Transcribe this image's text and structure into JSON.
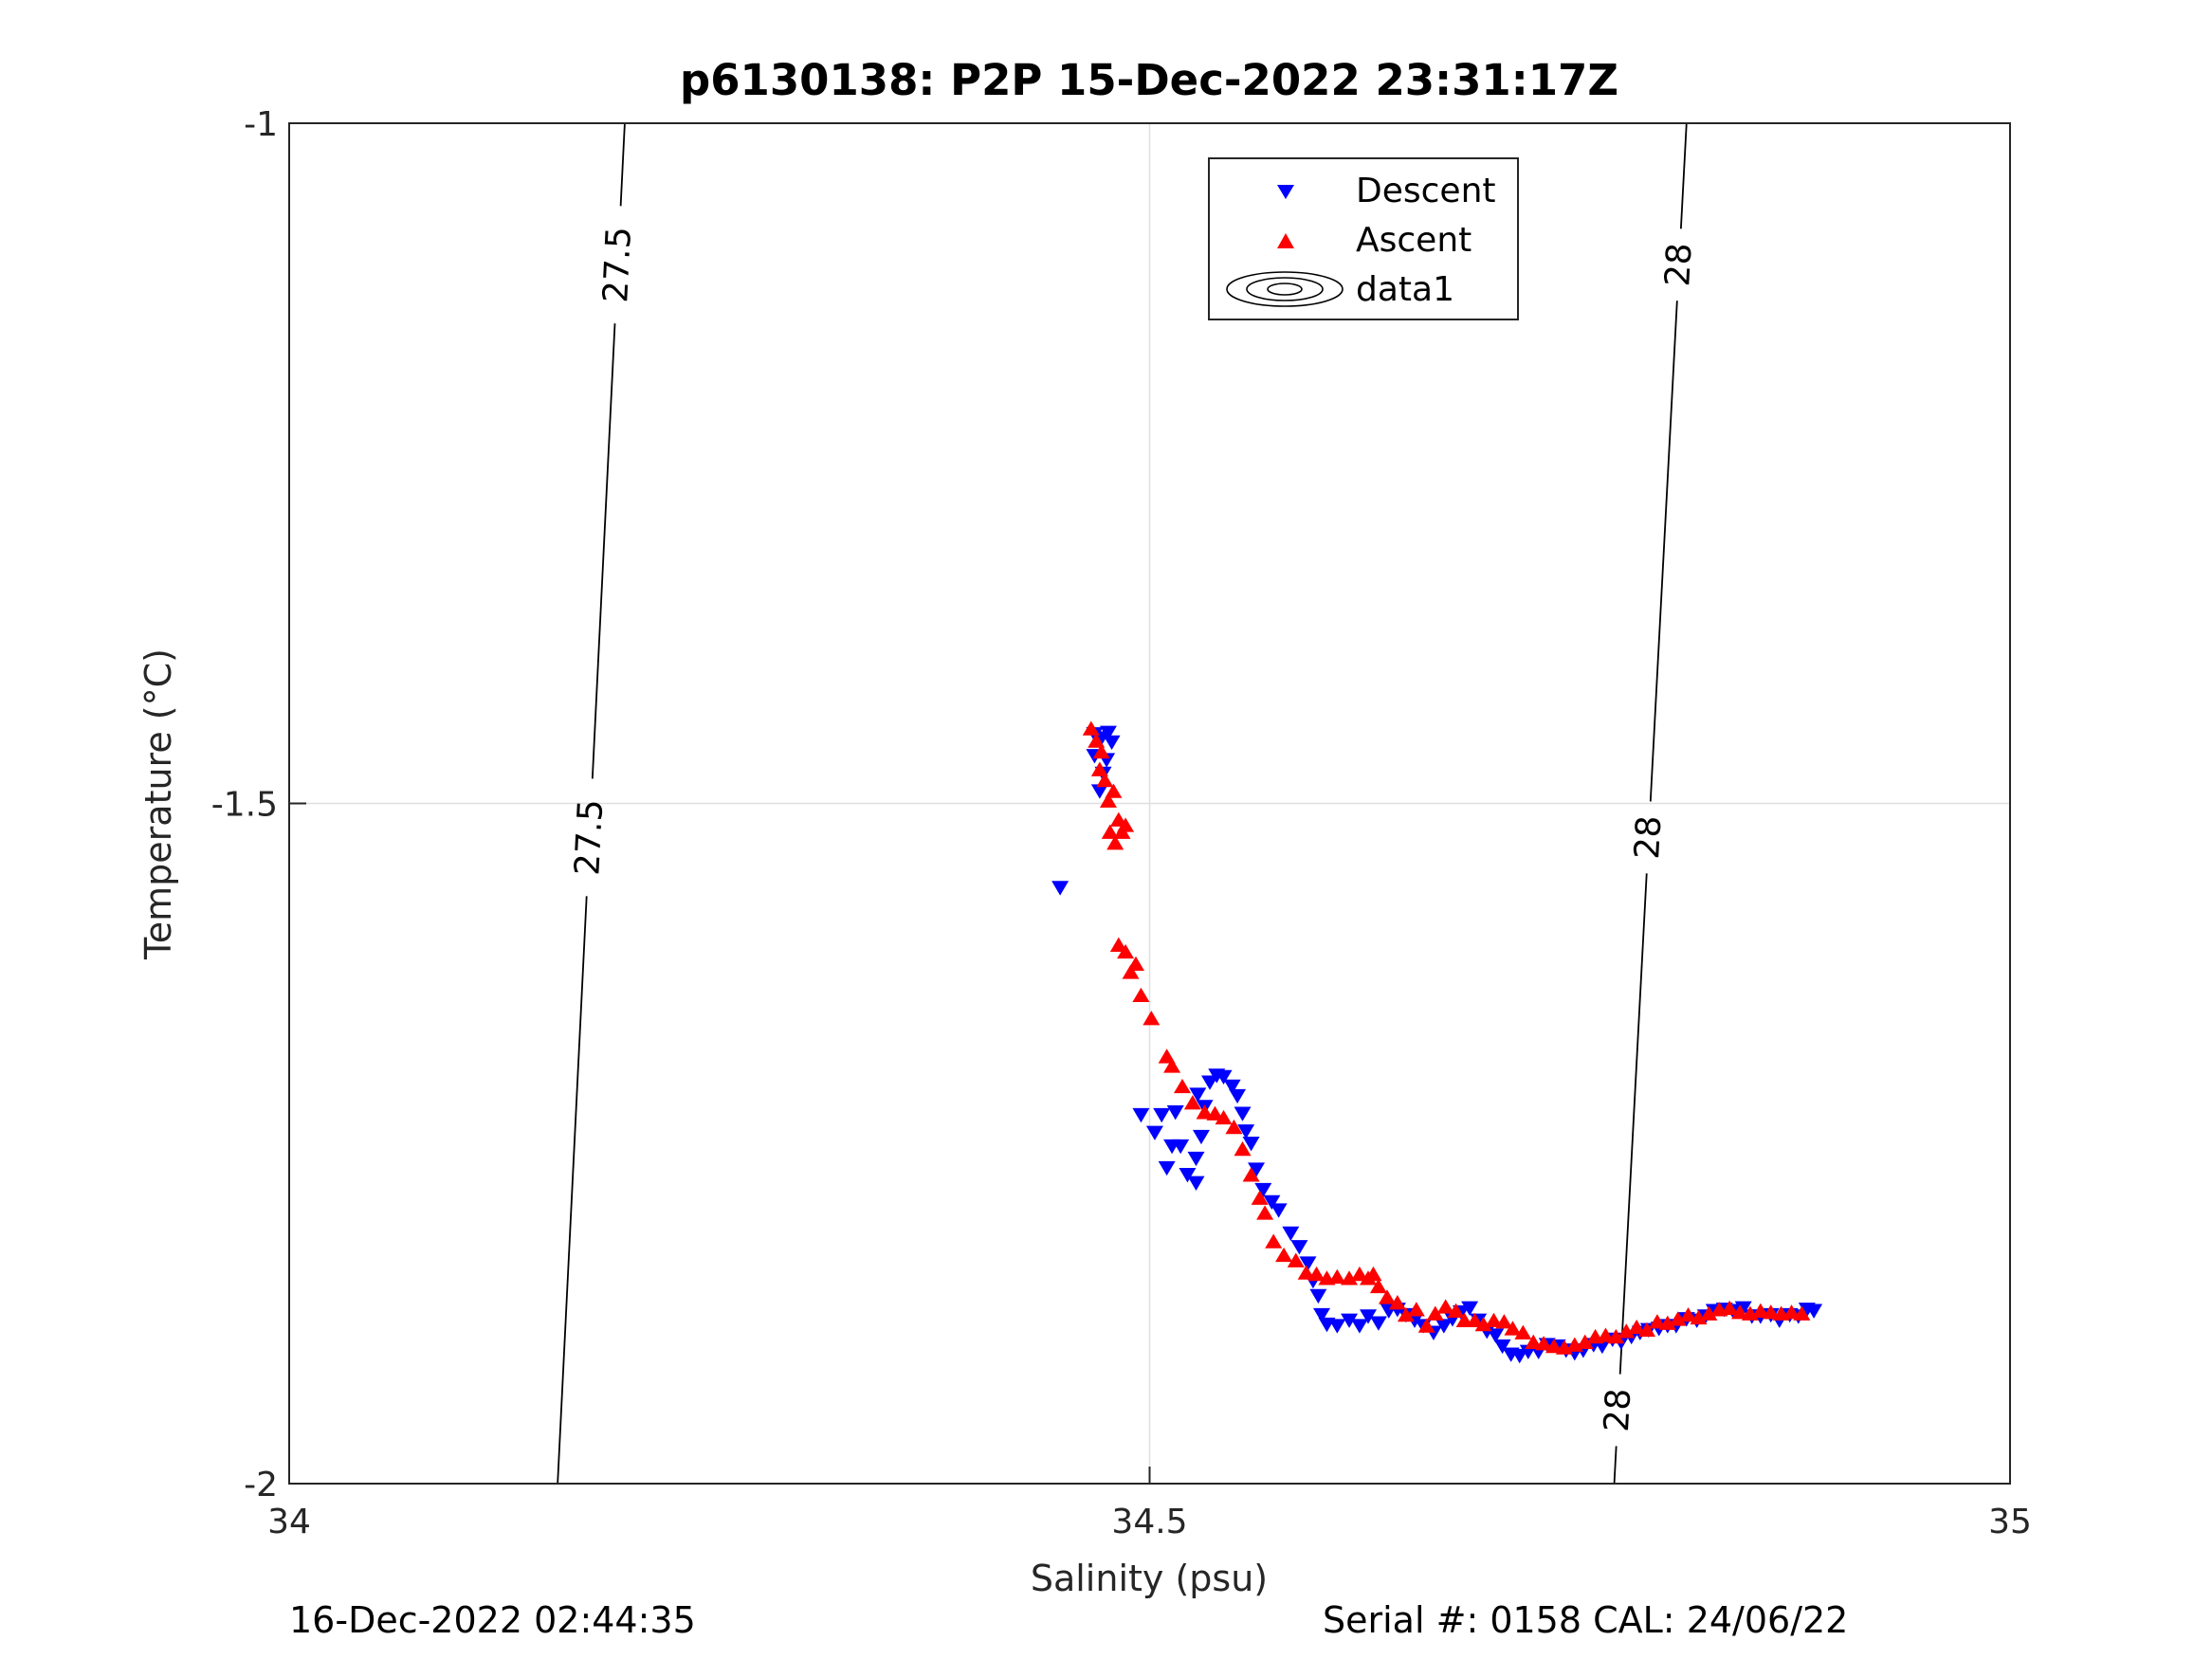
{
  "chart_data": {
    "type": "scatter",
    "title": "p6130138: P2P 15-Dec-2022 23:31:17Z",
    "xlabel": "Salinity (psu)",
    "ylabel": "Temperature (°C)",
    "xlim": [
      34,
      35
    ],
    "ylim": [
      -2,
      -1
    ],
    "xticks": [
      34,
      34.5,
      35
    ],
    "xtick_labels": [
      "34",
      "34.5",
      "35"
    ],
    "yticks": [
      -2,
      -1.5,
      -1
    ],
    "ytick_labels": [
      "-2",
      "-1.5",
      "-1"
    ],
    "grid": true,
    "legend_position": "top-center",
    "legend": [
      "Descent",
      "Ascent",
      "data1"
    ],
    "series": [
      {
        "name": "Descent",
        "color": "#0000ff",
        "marker": "triangle-down",
        "points": [
          [
            34.448,
            -1.562
          ],
          [
            34.468,
            -1.449
          ],
          [
            34.472,
            -1.452
          ],
          [
            34.476,
            -1.448
          ],
          [
            34.478,
            -1.455
          ],
          [
            34.475,
            -1.468
          ],
          [
            34.473,
            -1.478
          ],
          [
            34.471,
            -1.491
          ],
          [
            34.468,
            -1.465
          ],
          [
            34.495,
            -1.729
          ],
          [
            34.507,
            -1.729
          ],
          [
            34.503,
            -1.742
          ],
          [
            34.515,
            -1.727
          ],
          [
            34.513,
            -1.752
          ],
          [
            34.51,
            -1.768
          ],
          [
            34.518,
            -1.752
          ],
          [
            34.527,
            -1.761
          ],
          [
            34.522,
            -1.773
          ],
          [
            34.527,
            -1.779
          ],
          [
            34.53,
            -1.745
          ],
          [
            34.528,
            -1.714
          ],
          [
            34.532,
            -1.723
          ],
          [
            34.535,
            -1.705
          ],
          [
            34.539,
            -1.7
          ],
          [
            34.543,
            -1.701
          ],
          [
            34.548,
            -1.708
          ],
          [
            34.551,
            -1.715
          ],
          [
            34.554,
            -1.728
          ],
          [
            34.556,
            -1.741
          ],
          [
            34.559,
            -1.75
          ],
          [
            34.562,
            -1.769
          ],
          [
            34.566,
            -1.784
          ],
          [
            34.571,
            -1.793
          ],
          [
            34.575,
            -1.799
          ],
          [
            34.582,
            -1.816
          ],
          [
            34.587,
            -1.826
          ],
          [
            34.592,
            -1.838
          ],
          [
            34.595,
            -1.851
          ],
          [
            34.598,
            -1.862
          ],
          [
            34.6,
            -1.876
          ],
          [
            34.603,
            -1.883
          ],
          [
            34.609,
            -1.884
          ],
          [
            34.616,
            -1.88
          ],
          [
            34.622,
            -1.884
          ],
          [
            34.627,
            -1.877
          ],
          [
            34.633,
            -1.882
          ],
          [
            34.639,
            -1.873
          ],
          [
            34.644,
            -1.872
          ],
          [
            34.649,
            -1.876
          ],
          [
            34.654,
            -1.88
          ],
          [
            34.659,
            -1.884
          ],
          [
            34.665,
            -1.889
          ],
          [
            34.671,
            -1.884
          ],
          [
            34.676,
            -1.879
          ],
          [
            34.681,
            -1.874
          ],
          [
            34.686,
            -1.871
          ],
          [
            34.691,
            -1.88
          ],
          [
            34.696,
            -1.888
          ],
          [
            34.701,
            -1.891
          ],
          [
            34.705,
            -1.899
          ],
          [
            34.71,
            -1.905
          ],
          [
            34.715,
            -1.906
          ],
          [
            34.72,
            -1.903
          ],
          [
            34.726,
            -1.903
          ],
          [
            34.731,
            -1.898
          ],
          [
            34.737,
            -1.899
          ],
          [
            34.742,
            -1.902
          ],
          [
            34.747,
            -1.904
          ],
          [
            34.752,
            -1.902
          ],
          [
            34.758,
            -1.898
          ],
          [
            34.763,
            -1.899
          ],
          [
            34.769,
            -1.894
          ],
          [
            34.774,
            -1.896
          ],
          [
            34.78,
            -1.892
          ],
          [
            34.785,
            -1.889
          ],
          [
            34.79,
            -1.887
          ],
          [
            34.796,
            -1.886
          ],
          [
            34.801,
            -1.884
          ],
          [
            34.806,
            -1.884
          ],
          [
            34.812,
            -1.879
          ],
          [
            34.818,
            -1.88
          ],
          [
            34.823,
            -1.877
          ],
          [
            34.828,
            -1.873
          ],
          [
            34.834,
            -1.872
          ],
          [
            34.839,
            -1.873
          ],
          [
            34.845,
            -1.871
          ],
          [
            34.85,
            -1.877
          ],
          [
            34.855,
            -1.877
          ],
          [
            34.861,
            -1.876
          ],
          [
            34.866,
            -1.88
          ],
          [
            34.872,
            -1.876
          ],
          [
            34.877,
            -1.877
          ],
          [
            34.882,
            -1.872
          ],
          [
            34.886,
            -1.873
          ]
        ]
      },
      {
        "name": "Ascent",
        "color": "#ff0000",
        "marker": "triangle-up",
        "points": [
          [
            34.466,
            -1.445
          ],
          [
            34.469,
            -1.454
          ],
          [
            34.472,
            -1.462
          ],
          [
            34.471,
            -1.475
          ],
          [
            34.474,
            -1.483
          ],
          [
            34.476,
            -1.498
          ],
          [
            34.479,
            -1.491
          ],
          [
            34.477,
            -1.521
          ],
          [
            34.48,
            -1.529
          ],
          [
            34.482,
            -1.512
          ],
          [
            34.484,
            -1.521
          ],
          [
            34.486,
            -1.516
          ],
          [
            34.482,
            -1.604
          ],
          [
            34.486,
            -1.609
          ],
          [
            34.489,
            -1.624
          ],
          [
            34.492,
            -1.618
          ],
          [
            34.495,
            -1.641
          ],
          [
            34.501,
            -1.658
          ],
          [
            34.51,
            -1.686
          ],
          [
            34.513,
            -1.693
          ],
          [
            34.519,
            -1.708
          ],
          [
            34.525,
            -1.72
          ],
          [
            34.532,
            -1.727
          ],
          [
            34.538,
            -1.728
          ],
          [
            34.543,
            -1.731
          ],
          [
            34.549,
            -1.738
          ],
          [
            34.554,
            -1.754
          ],
          [
            34.559,
            -1.773
          ],
          [
            34.564,
            -1.79
          ],
          [
            34.567,
            -1.801
          ],
          [
            34.572,
            -1.822
          ],
          [
            34.578,
            -1.832
          ],
          [
            34.585,
            -1.836
          ],
          [
            34.591,
            -1.845
          ],
          [
            34.597,
            -1.846
          ],
          [
            34.603,
            -1.849
          ],
          [
            34.609,
            -1.848
          ],
          [
            34.616,
            -1.849
          ],
          [
            34.622,
            -1.846
          ],
          [
            34.627,
            -1.849
          ],
          [
            34.63,
            -1.846
          ],
          [
            34.633,
            -1.855
          ],
          [
            34.638,
            -1.863
          ],
          [
            34.644,
            -1.867
          ],
          [
            34.649,
            -1.876
          ],
          [
            34.655,
            -1.872
          ],
          [
            34.661,
            -1.884
          ],
          [
            34.666,
            -1.875
          ],
          [
            34.672,
            -1.87
          ],
          [
            34.678,
            -1.873
          ],
          [
            34.683,
            -1.88
          ],
          [
            34.689,
            -1.88
          ],
          [
            34.694,
            -1.883
          ],
          [
            34.7,
            -1.88
          ],
          [
            34.706,
            -1.881
          ],
          [
            34.711,
            -1.886
          ],
          [
            34.717,
            -1.889
          ],
          [
            34.723,
            -1.896
          ],
          [
            34.729,
            -1.897
          ],
          [
            34.735,
            -1.899
          ],
          [
            34.741,
            -1.9
          ],
          [
            34.747,
            -1.898
          ],
          [
            34.753,
            -1.896
          ],
          [
            34.759,
            -1.892
          ],
          [
            34.765,
            -1.891
          ],
          [
            34.771,
            -1.892
          ],
          [
            34.777,
            -1.888
          ],
          [
            34.783,
            -1.885
          ],
          [
            34.789,
            -1.887
          ],
          [
            34.795,
            -1.881
          ],
          [
            34.801,
            -1.882
          ],
          [
            34.807,
            -1.879
          ],
          [
            34.813,
            -1.876
          ],
          [
            34.819,
            -1.878
          ],
          [
            34.825,
            -1.875
          ],
          [
            34.831,
            -1.872
          ],
          [
            34.837,
            -1.871
          ],
          [
            34.843,
            -1.874
          ],
          [
            34.849,
            -1.875
          ],
          [
            34.855,
            -1.873
          ],
          [
            34.861,
            -1.874
          ],
          [
            34.867,
            -1.875
          ],
          [
            34.873,
            -1.874
          ],
          [
            34.879,
            -1.875
          ]
        ]
      }
    ],
    "contours": [
      {
        "label": "27.5",
        "line": [
          [
            34.156,
            -2.0
          ],
          [
            34.195,
            -1.0
          ]
        ],
        "label_at_y": [
          -1.104,
          -1.525
        ]
      },
      {
        "label": "28",
        "line": [
          [
            34.77,
            -2.0
          ],
          [
            34.812,
            -1.0
          ]
        ],
        "label_at_y": [
          -1.104,
          -1.525,
          -1.946
        ]
      }
    ]
  },
  "footer": {
    "timestamp": "16-Dec-2022 02:44:35",
    "serial": "Serial #: 0158  CAL: 24/06/22"
  }
}
